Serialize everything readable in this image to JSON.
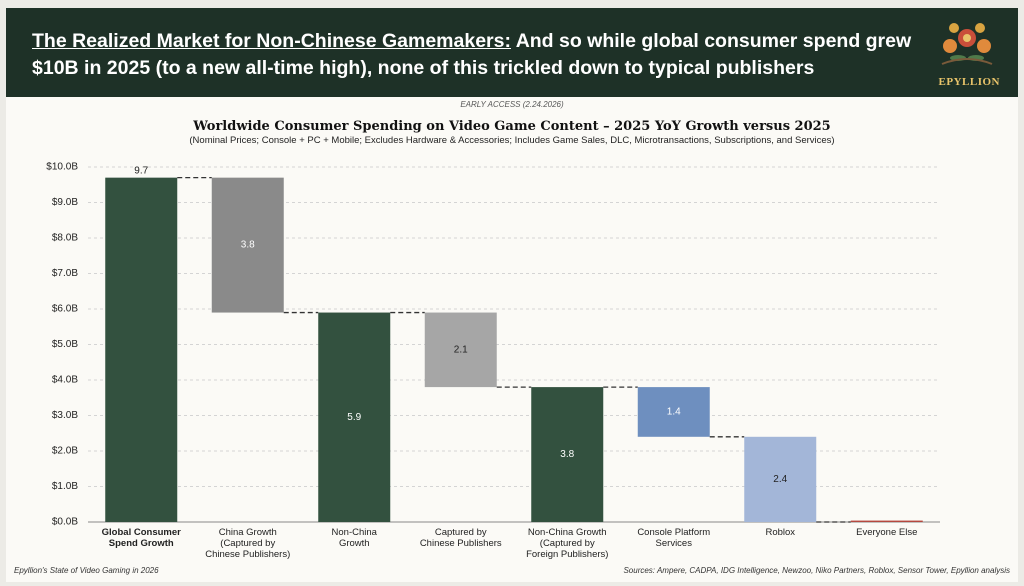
{
  "header": {
    "title_lead": "The Realized Market for Non-Chinese Gamemakers:",
    "title_rest": "And so while global consumer spend grew $10B in 2025 (to a new all-time high), none of this trickled down to typical publishers",
    "logo": "EPYLLION"
  },
  "early_access": "EARLY ACCESS (2.24.2026)",
  "footer": {
    "left": "Epyllion's State of Video Gaming in 2026",
    "right": "Sources: Ampere, CADPA, IDG Intelligence, Newzoo, Niko Partners, Roblox, Sensor Tower, Epyllion analysis"
  },
  "chart_data": {
    "type": "waterfall",
    "title": "Worldwide Consumer Spending on Video Game Content – 2025 YoY Growth versus 2025",
    "subtitle": "(Nominal Prices; Console + PC + Mobile; Excludes Hardware & Accessories; Includes Game Sales, DLC, Microtransactions, Subscriptions, and Services)",
    "categories": [
      "Global Consumer\nSpend Growth",
      "China Growth\n(Captured by\nChinese Publishers)",
      "Non-China\nGrowth",
      "Captured by\nChinese Publishers",
      "Non-China Growth\n(Captured by\nForeign Publishers)",
      "Console Platform\nServices",
      "Roblox",
      "Everyone Else"
    ],
    "values": [
      9.7,
      3.8,
      5.9,
      2.1,
      3.8,
      1.4,
      2.4,
      0.04
    ],
    "value_labels": [
      "9.7",
      "3.8",
      "5.9",
      "2.1",
      "3.8",
      "1.4",
      "2.4",
      null
    ],
    "measures": [
      "total",
      "decrease",
      "total",
      "decrease",
      "total",
      "decrease",
      "decrease",
      "total"
    ],
    "colors": [
      "#33513f",
      "#8a8a8a",
      "#33513f",
      "#a6a6a6",
      "#33513f",
      "#6e8fbf",
      "#a3b6d8",
      "#b5483f"
    ],
    "ylim": [
      0,
      10
    ],
    "yticks": [
      {
        "value": 0,
        "label": "$0.0B"
      },
      {
        "value": 1,
        "label": "$1.0B"
      },
      {
        "value": 2,
        "label": "$2.0B"
      },
      {
        "value": 3,
        "label": "$3.0B"
      },
      {
        "value": 4,
        "label": "$4.0B"
      },
      {
        "value": 5,
        "label": "$5.0B"
      },
      {
        "value": 6,
        "label": "$6.0B"
      },
      {
        "value": 7,
        "label": "$7.0B"
      },
      {
        "value": 8,
        "label": "$8.0B"
      },
      {
        "value": 9,
        "label": "$9.0B"
      },
      {
        "value": 10,
        "label": "$10.0B"
      }
    ],
    "grid": true
  }
}
